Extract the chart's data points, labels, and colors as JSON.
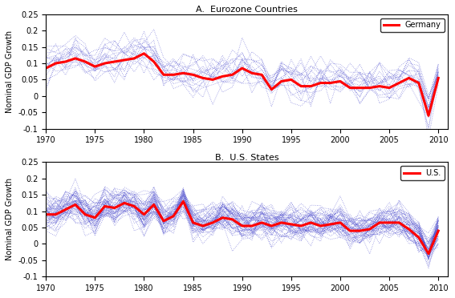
{
  "title_top": "A.  Eurozone Countries",
  "title_bottom": "B.  U.S. States",
  "ylabel": "Nominal GDP Growth",
  "xlim": [
    1970,
    2011
  ],
  "ylim": [
    -0.1,
    0.25
  ],
  "yticks": [
    -0.1,
    -0.05,
    0,
    0.05,
    0.1,
    0.15,
    0.2,
    0.25
  ],
  "xticks": [
    1970,
    1975,
    1980,
    1985,
    1990,
    1995,
    2000,
    2005,
    2010
  ],
  "legend_top": "Germany",
  "legend_bottom": "U.S.",
  "background_color": "#ffffff",
  "years": [
    1970,
    1971,
    1972,
    1973,
    1974,
    1975,
    1976,
    1977,
    1978,
    1979,
    1980,
    1981,
    1982,
    1983,
    1984,
    1985,
    1986,
    1987,
    1988,
    1989,
    1990,
    1991,
    1992,
    1993,
    1994,
    1995,
    1996,
    1997,
    1998,
    1999,
    2000,
    2001,
    2002,
    2003,
    2004,
    2005,
    2006,
    2007,
    2008,
    2009,
    2010
  ],
  "germany": [
    0.085,
    0.1,
    0.105,
    0.115,
    0.105,
    0.09,
    0.1,
    0.105,
    0.11,
    0.115,
    0.13,
    0.105,
    0.065,
    0.065,
    0.07,
    0.065,
    0.055,
    0.05,
    0.06,
    0.065,
    0.085,
    0.07,
    0.065,
    0.02,
    0.045,
    0.05,
    0.03,
    0.03,
    0.04,
    0.04,
    0.045,
    0.025,
    0.025,
    0.025,
    0.03,
    0.025,
    0.04,
    0.055,
    0.04,
    -0.06,
    0.055
  ],
  "us": [
    0.09,
    0.09,
    0.105,
    0.12,
    0.09,
    0.08,
    0.115,
    0.11,
    0.125,
    0.115,
    0.09,
    0.12,
    0.07,
    0.085,
    0.13,
    0.065,
    0.055,
    0.065,
    0.08,
    0.075,
    0.055,
    0.055,
    0.065,
    0.055,
    0.065,
    0.06,
    0.055,
    0.065,
    0.055,
    0.06,
    0.065,
    0.04,
    0.04,
    0.045,
    0.065,
    0.065,
    0.065,
    0.045,
    0.02,
    -0.03,
    0.04
  ],
  "euro_base": [
    0.085,
    0.1,
    0.105,
    0.115,
    0.105,
    0.09,
    0.1,
    0.105,
    0.11,
    0.115,
    0.13,
    0.105,
    0.065,
    0.065,
    0.07,
    0.065,
    0.055,
    0.05,
    0.06,
    0.065,
    0.085,
    0.07,
    0.065,
    0.02,
    0.045,
    0.05,
    0.03,
    0.03,
    0.04,
    0.04,
    0.045,
    0.025,
    0.025,
    0.025,
    0.03,
    0.025,
    0.04,
    0.055,
    0.04,
    -0.06,
    0.055
  ],
  "us_base": [
    0.09,
    0.09,
    0.105,
    0.12,
    0.09,
    0.08,
    0.115,
    0.11,
    0.125,
    0.115,
    0.09,
    0.12,
    0.07,
    0.085,
    0.13,
    0.065,
    0.055,
    0.065,
    0.08,
    0.075,
    0.055,
    0.055,
    0.065,
    0.055,
    0.065,
    0.06,
    0.055,
    0.065,
    0.055,
    0.06,
    0.065,
    0.04,
    0.04,
    0.045,
    0.065,
    0.065,
    0.065,
    0.045,
    0.02,
    -0.03,
    0.04
  ],
  "n_euro_lines": 18,
  "n_us_lines": 50,
  "euro_noise_scale": 0.04,
  "us_noise_scale": 0.035,
  "seed_euro": 42,
  "seed_us": 123
}
